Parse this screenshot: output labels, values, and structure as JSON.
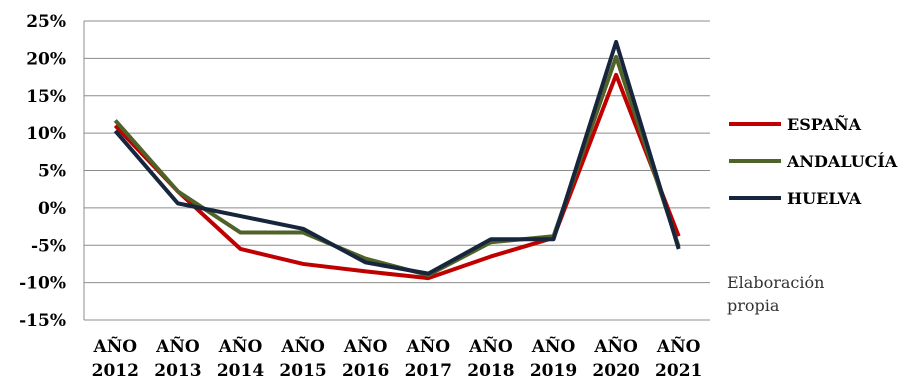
{
  "chart_data": {
    "type": "line",
    "categories": [
      [
        "AÑO",
        "2012"
      ],
      [
        "AÑO",
        "2013"
      ],
      [
        "AÑO",
        "2014"
      ],
      [
        "AÑO",
        "2015"
      ],
      [
        "AÑO",
        "2016"
      ],
      [
        "AÑO",
        "2017"
      ],
      [
        "AÑO",
        "2018"
      ],
      [
        "AÑO",
        "2019"
      ],
      [
        "AÑO",
        "2020"
      ],
      [
        "AÑO",
        "2021"
      ]
    ],
    "series": [
      {
        "name": "ESPAÑA",
        "color": "#c00000",
        "values": [
          11,
          2.2,
          -5.5,
          -7.5,
          -8.5,
          -9.4,
          -6.5,
          -4,
          17.8,
          -3.8
        ]
      },
      {
        "name": "ANDALUCÍA",
        "color": "#4f6228",
        "values": [
          11.7,
          2.2,
          -3.3,
          -3.3,
          -6.8,
          -9.0,
          -4.6,
          -3.8,
          20.2,
          -5.2
        ]
      },
      {
        "name": "HUELVA",
        "color": "#17263c",
        "values": [
          10.3,
          0.6,
          -1.1,
          -2.8,
          -7.3,
          -8.8,
          -4.2,
          -4.2,
          22.2,
          -5.5
        ]
      }
    ],
    "yticks": [
      "25%",
      "20%",
      "15%",
      "10%",
      "5%",
      "0%",
      "-5%",
      "-10%",
      "-15%"
    ],
    "ylim": [
      -15,
      25
    ],
    "legend_position": "right",
    "grid": true
  },
  "note": [
    "Elaboración",
    "propia"
  ]
}
